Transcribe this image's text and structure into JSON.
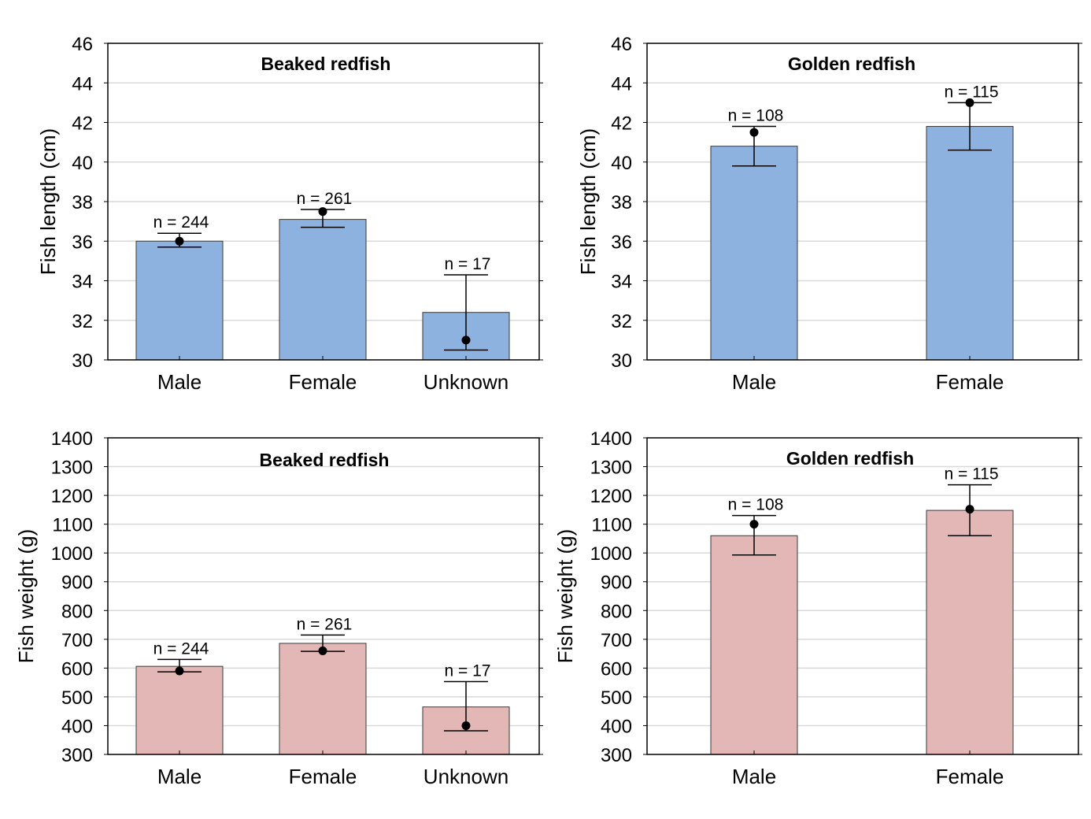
{
  "chart_data": [
    {
      "type": "bar",
      "title": "Beaked redfish",
      "xlabel": "",
      "ylabel": "Fish length (cm)",
      "ylim": [
        30,
        46
      ],
      "yticks": [
        30,
        32,
        34,
        36,
        38,
        40,
        42,
        44,
        46
      ],
      "grid": true,
      "categories": [
        "Male",
        "Female",
        "Unknown"
      ],
      "values": [
        36.0,
        37.1,
        32.4
      ],
      "points": [
        36.0,
        37.5,
        31.0
      ],
      "error_low": [
        35.7,
        36.7,
        30.5
      ],
      "error_high": [
        36.4,
        37.6,
        34.3
      ],
      "n_labels": [
        "n = 244",
        "n = 261",
        "n = 17"
      ],
      "bar_color": "#8db2e0"
    },
    {
      "type": "bar",
      "title": "Golden redfish",
      "xlabel": "",
      "ylabel": "Fish length (cm)",
      "ylim": [
        30,
        46
      ],
      "yticks": [
        30,
        32,
        34,
        36,
        38,
        40,
        42,
        44,
        46
      ],
      "grid": true,
      "categories": [
        "Male",
        "Female"
      ],
      "values": [
        40.8,
        41.8
      ],
      "points": [
        41.5,
        43.0
      ],
      "error_low": [
        39.8,
        40.6
      ],
      "error_high": [
        41.8,
        43.0
      ],
      "n_labels": [
        "n = 108",
        "n = 115"
      ],
      "bar_color": "#8db2e0"
    },
    {
      "type": "bar",
      "title": "Beaked redfish",
      "xlabel": "",
      "ylabel": "Fish weight (g)",
      "ylim": [
        300,
        1400
      ],
      "yticks": [
        300,
        400,
        500,
        600,
        700,
        800,
        900,
        1000,
        1100,
        1200,
        1300,
        1400
      ],
      "grid": true,
      "categories": [
        "Male",
        "Female",
        "Unknown"
      ],
      "values": [
        606,
        686,
        465
      ],
      "points": [
        590,
        660,
        400
      ],
      "error_low": [
        587,
        658,
        382
      ],
      "error_high": [
        630,
        715,
        553
      ],
      "n_labels": [
        "n = 244",
        "n = 261",
        "n = 17"
      ],
      "bar_color": "#e4b7b7"
    },
    {
      "type": "bar",
      "title": "Golden redfish",
      "xlabel": "",
      "ylabel": "Fish weight (g)",
      "ylim": [
        300,
        1400
      ],
      "yticks": [
        300,
        400,
        500,
        600,
        700,
        800,
        900,
        1000,
        1100,
        1200,
        1300,
        1400
      ],
      "grid": true,
      "categories": [
        "Male",
        "Female"
      ],
      "values": [
        1060,
        1148
      ],
      "points": [
        1100,
        1152
      ],
      "error_low": [
        993,
        1060
      ],
      "error_high": [
        1130,
        1237
      ],
      "n_labels": [
        "n = 108",
        "n = 115"
      ],
      "bar_color": "#e4b7b7"
    }
  ]
}
